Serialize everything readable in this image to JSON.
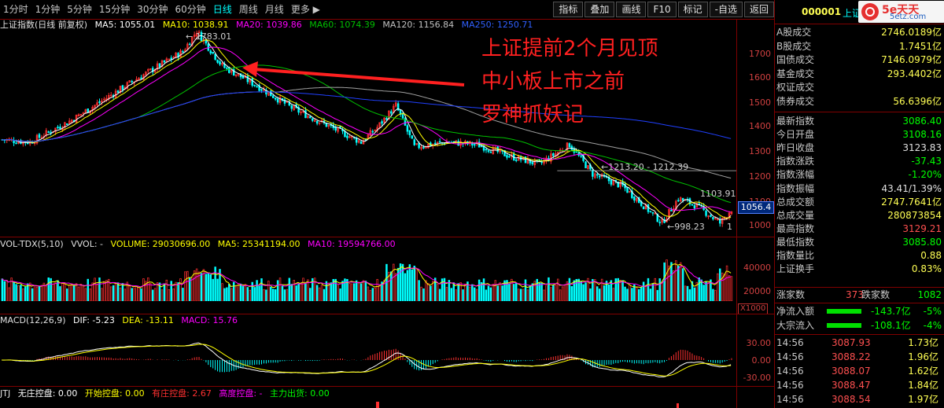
{
  "periods": [
    "1分时",
    "1分钟",
    "5分钟",
    "15分钟",
    "30分钟",
    "60分钟",
    "日线",
    "周线",
    "月线",
    "更多 ▶"
  ],
  "active_period": "日线",
  "toolbar_buttons": [
    "指标",
    "叠加",
    "画线",
    "F10",
    "标记",
    "-自选",
    "返回"
  ],
  "main_legend": {
    "title": "上证指数(日线 前复权)",
    "ma5": "MA5: 1055.01",
    "ma10": "MA10: 1038.91",
    "ma20": "MA20: 1039.86",
    "ma60": "MA60: 1074.39",
    "ma120": "MA120: 1156.84",
    "ma250": "MA250: 1250.71"
  },
  "colors": {
    "up": "#ff3030",
    "down": "#00ffff",
    "ma5": "#ffffff",
    "ma10": "#ffff00",
    "ma20": "#ff00ff",
    "ma60": "#00c000",
    "ma120": "#a0a0a0",
    "ma250": "#2040ff",
    "annot": "#ff2020",
    "grid": "#800000"
  },
  "price_axis": [
    "1700",
    "1600",
    "1500",
    "1400",
    "1300",
    "1200",
    "1100",
    "1000"
  ],
  "price_annotations": {
    "high": "1783.01",
    "low": "998.23",
    "level1": "1213.20",
    "level2": "1212.39",
    "peak2": "1103.91",
    "current": "1056.4",
    "edge": "1"
  },
  "annotation_lines": [
    "上证提前2个月见顶",
    "中小板上市之前",
    "罗神抓妖记"
  ],
  "vol_legend": {
    "name": "VOL-TDX(5,10)",
    "vvol": "VVOL: -",
    "volume": "VOLUME: 29030696.00",
    "ma5": "MA5: 25341194.00",
    "ma10": "MA10: 19594766.00"
  },
  "vol_axis": [
    "40000",
    "20000"
  ],
  "vol_unit": "X1000",
  "macd_legend": {
    "name": "MACD(12,26,9)",
    "dif": "DIF: -5.23",
    "dea": "DEA: -13.11",
    "macd": "MACD: 15.76"
  },
  "macd_axis": [
    "30.00",
    "0.00",
    "-30.00"
  ],
  "bottom_legend": {
    "name": "JTJ",
    "a": "无庄控盘: 0.00",
    "b": "开始控盘: 0.00",
    "c": "有庄控盘: 2.67",
    "d": "高度控盘: -",
    "e": "主力出货: 0.00"
  },
  "sidebar": {
    "code": "000001",
    "name": "上证",
    "logo_main": "5e天天",
    "logo_sub": "5etz.com",
    "stats": [
      {
        "label": "A股成交",
        "value": "2746.0189亿",
        "color": "#ffff54"
      },
      {
        "label": "B股成交",
        "value": "1.7451亿",
        "color": "#ffff54"
      },
      {
        "label": "国债成交",
        "value": "7146.0979亿",
        "color": "#ffff54"
      },
      {
        "label": "基金成交",
        "value": "293.4402亿",
        "color": "#ffff54"
      },
      {
        "label": "权证成交",
        "value": "",
        "color": "#ffff54"
      },
      {
        "label": "债券成交",
        "value": "56.6396亿",
        "color": "#ffff54"
      }
    ],
    "quotes": [
      {
        "label": "最新指数",
        "value": "3086.40",
        "color": "#00ff00"
      },
      {
        "label": "今日开盘",
        "value": "3108.16",
        "color": "#00ff00"
      },
      {
        "label": "昨日收盘",
        "value": "3123.83",
        "color": "#e0e0e0"
      },
      {
        "label": "指数涨跌",
        "value": "-37.43",
        "color": "#00ff00"
      },
      {
        "label": "指数涨幅",
        "value": "-1.20%",
        "color": "#00ff00"
      },
      {
        "label": "指数振幅",
        "value": "43.41/1.39%",
        "color": "#e0e0e0"
      },
      {
        "label": "总成交额",
        "value": "2747.7641亿",
        "color": "#ffff54"
      },
      {
        "label": "总成交量",
        "value": "280873854",
        "color": "#ffff54"
      },
      {
        "label": "最高指数",
        "value": "3129.21",
        "color": "#ff5050"
      },
      {
        "label": "最低指数",
        "value": "3085.80",
        "color": "#00ff00"
      },
      {
        "label": "指数量比",
        "value": "0.88",
        "color": "#ffff54"
      },
      {
        "label": "上证换手",
        "value": "0.83%",
        "color": "#ffff54"
      }
    ],
    "breadth": {
      "up_label": "涨家数",
      "up_value": "373",
      "down_label": "跌家数",
      "down_value": "1082"
    },
    "flows": [
      {
        "label": "净流入额",
        "value": "-143.7亿",
        "pct": "-5%"
      },
      {
        "label": "大宗流入",
        "value": "-108.1亿",
        "pct": "-4%"
      }
    ],
    "ticks": [
      {
        "time": "14:56",
        "price": "3087.93",
        "vol": "1.73亿"
      },
      {
        "time": "14:56",
        "price": "3088.22",
        "vol": "1.96亿"
      },
      {
        "time": "14:56",
        "price": "3088.07",
        "vol": "1.62亿"
      },
      {
        "time": "14:56",
        "price": "3088.47",
        "vol": "1.84亿"
      },
      {
        "time": "14:56",
        "price": "3088.54",
        "vol": "1.97亿"
      }
    ]
  }
}
